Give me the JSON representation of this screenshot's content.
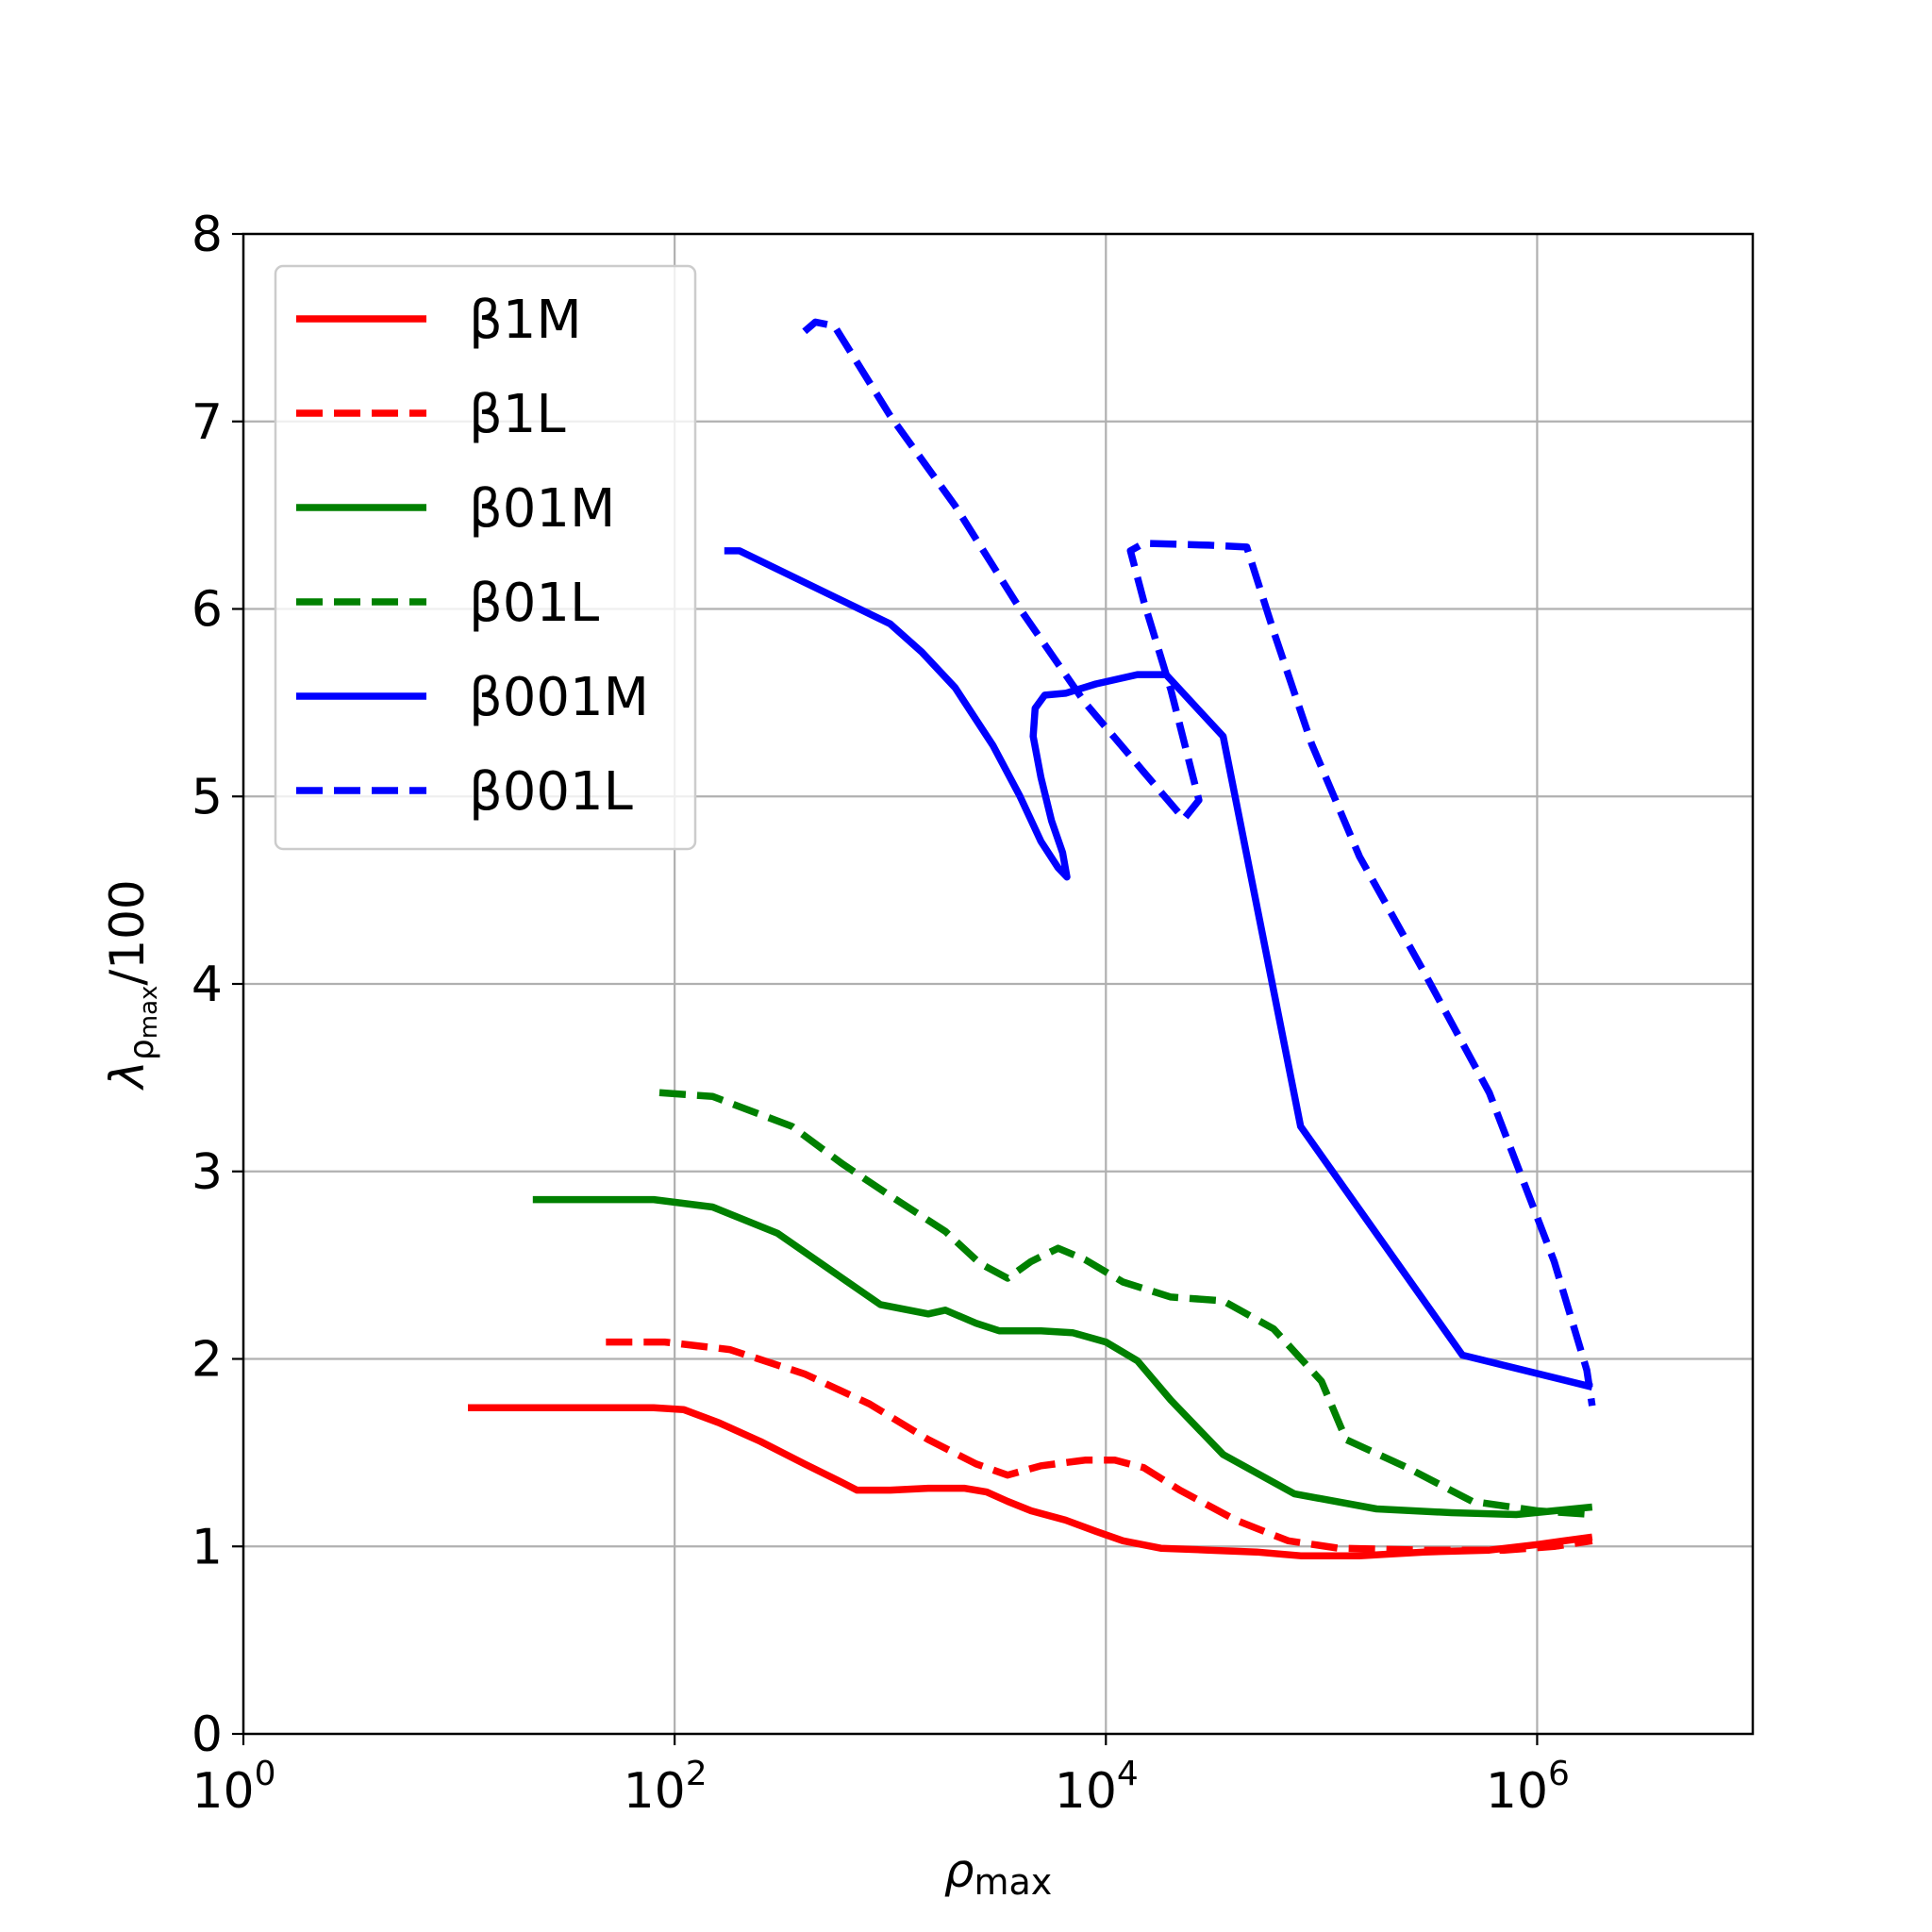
{
  "chart_data": {
    "type": "line",
    "title": "",
    "xlabel": {
      "base": "ρ",
      "sub": "max"
    },
    "ylabel": {
      "base": "λ",
      "sub": "ρ",
      "subsub": "max",
      "suffix": "/100"
    },
    "xscale": "log",
    "xlim": [
      1,
      10000000
    ],
    "ylim": [
      0,
      8
    ],
    "grid": true,
    "legend_placement": "top-left",
    "x_ticks": [
      {
        "value": 1,
        "base": "10",
        "exp": "0"
      },
      {
        "value": 100,
        "base": "10",
        "exp": "2"
      },
      {
        "value": 10000,
        "base": "10",
        "exp": "4"
      },
      {
        "value": 1000000,
        "base": "10",
        "exp": "6"
      }
    ],
    "y_ticks": [
      {
        "value": 0,
        "label": "0"
      },
      {
        "value": 1,
        "label": "1"
      },
      {
        "value": 2,
        "label": "2"
      },
      {
        "value": 3,
        "label": "3"
      },
      {
        "value": 4,
        "label": "4"
      },
      {
        "value": 5,
        "label": "5"
      },
      {
        "value": 6,
        "label": "6"
      },
      {
        "value": 7,
        "label": "7"
      },
      {
        "value": 8,
        "label": "8"
      }
    ],
    "series": [
      {
        "name": "β1M",
        "color": "#ff0000",
        "dash": false,
        "points": [
          [
            11,
            1.74
          ],
          [
            30,
            1.74
          ],
          [
            80,
            1.74
          ],
          [
            110,
            1.73
          ],
          [
            160,
            1.66
          ],
          [
            250,
            1.56
          ],
          [
            400,
            1.44
          ],
          [
            600,
            1.34
          ],
          [
            700,
            1.3
          ],
          [
            1000,
            1.3
          ],
          [
            1500,
            1.31
          ],
          [
            2200,
            1.31
          ],
          [
            2800,
            1.29
          ],
          [
            3500,
            1.24
          ],
          [
            4500,
            1.19
          ],
          [
            6500,
            1.14
          ],
          [
            9000,
            1.08
          ],
          [
            12000,
            1.03
          ],
          [
            18000,
            0.99
          ],
          [
            30000,
            0.98
          ],
          [
            50000,
            0.97
          ],
          [
            80000,
            0.95
          ],
          [
            150000,
            0.95
          ],
          [
            300000,
            0.97
          ],
          [
            600000,
            0.98
          ],
          [
            1000000,
            1.01
          ],
          [
            1800000,
            1.05
          ]
        ]
      },
      {
        "name": "β1L",
        "color": "#ff0000",
        "dash": true,
        "points": [
          [
            48,
            2.09
          ],
          [
            90,
            2.09
          ],
          [
            180,
            2.05
          ],
          [
            400,
            1.92
          ],
          [
            800,
            1.76
          ],
          [
            1500,
            1.57
          ],
          [
            2500,
            1.44
          ],
          [
            3500,
            1.38
          ],
          [
            5000,
            1.43
          ],
          [
            8000,
            1.46
          ],
          [
            11000,
            1.46
          ],
          [
            15000,
            1.42
          ],
          [
            22000,
            1.3
          ],
          [
            40000,
            1.14
          ],
          [
            70000,
            1.03
          ],
          [
            120000,
            0.99
          ],
          [
            300000,
            0.98
          ],
          [
            700000,
            0.98
          ],
          [
            1200000,
            1.0
          ],
          [
            1800000,
            1.03
          ]
        ]
      },
      {
        "name": "β01M",
        "color": "#008000",
        "dash": false,
        "points": [
          [
            22,
            2.85
          ],
          [
            50,
            2.85
          ],
          [
            80,
            2.85
          ],
          [
            150,
            2.81
          ],
          [
            300,
            2.67
          ],
          [
            550,
            2.46
          ],
          [
            900,
            2.29
          ],
          [
            1500,
            2.24
          ],
          [
            1800,
            2.26
          ],
          [
            2500,
            2.19
          ],
          [
            3200,
            2.15
          ],
          [
            5000,
            2.15
          ],
          [
            7000,
            2.14
          ],
          [
            10000,
            2.09
          ],
          [
            14000,
            1.99
          ],
          [
            20000,
            1.78
          ],
          [
            35000,
            1.49
          ],
          [
            75000,
            1.28
          ],
          [
            180000,
            1.2
          ],
          [
            400000,
            1.18
          ],
          [
            800000,
            1.17
          ],
          [
            1800000,
            1.21
          ]
        ]
      },
      {
        "name": "β01L",
        "color": "#008000",
        "dash": true,
        "points": [
          [
            85,
            3.42
          ],
          [
            150,
            3.4
          ],
          [
            350,
            3.24
          ],
          [
            600,
            3.04
          ],
          [
            1000,
            2.87
          ],
          [
            1800,
            2.68
          ],
          [
            2600,
            2.51
          ],
          [
            3500,
            2.43
          ],
          [
            4500,
            2.52
          ],
          [
            6000,
            2.59
          ],
          [
            8000,
            2.53
          ],
          [
            12000,
            2.41
          ],
          [
            20000,
            2.33
          ],
          [
            35000,
            2.31
          ],
          [
            60000,
            2.16
          ],
          [
            100000,
            1.88
          ],
          [
            130000,
            1.57
          ],
          [
            250000,
            1.42
          ],
          [
            500000,
            1.24
          ],
          [
            1000000,
            1.19
          ],
          [
            1800000,
            1.17
          ]
        ]
      },
      {
        "name": "β001M",
        "color": "#0000ff",
        "dash": false,
        "points": [
          [
            170,
            6.31
          ],
          [
            200,
            6.31
          ],
          [
            1000,
            5.92
          ],
          [
            1400,
            5.77
          ],
          [
            2000,
            5.58
          ],
          [
            3000,
            5.27
          ],
          [
            4000,
            5.0
          ],
          [
            5000,
            4.76
          ],
          [
            6000,
            4.62
          ],
          [
            6600,
            4.57
          ],
          [
            6300,
            4.7
          ],
          [
            5600,
            4.87
          ],
          [
            5000,
            5.1
          ],
          [
            4600,
            5.32
          ],
          [
            4700,
            5.47
          ],
          [
            5200,
            5.54
          ],
          [
            6500,
            5.55
          ],
          [
            9000,
            5.6
          ],
          [
            14000,
            5.65
          ],
          [
            19000,
            5.65
          ],
          [
            35000,
            5.32
          ],
          [
            80000,
            3.24
          ],
          [
            450000,
            2.02
          ],
          [
            1800000,
            1.85
          ]
        ]
      },
      {
        "name": "β001L",
        "color": "#0000ff",
        "dash": true,
        "points": [
          [
            400,
            7.48
          ],
          [
            450,
            7.53
          ],
          [
            550,
            7.51
          ],
          [
            1000,
            7.03
          ],
          [
            2000,
            6.55
          ],
          [
            4000,
            6.0
          ],
          [
            8000,
            5.5
          ],
          [
            15000,
            5.13
          ],
          [
            23000,
            4.88
          ],
          [
            27000,
            4.98
          ],
          [
            20000,
            5.57
          ],
          [
            15000,
            6.04
          ],
          [
            13000,
            6.31
          ],
          [
            15000,
            6.35
          ],
          [
            30000,
            6.34
          ],
          [
            45000,
            6.33
          ],
          [
            60000,
            5.88
          ],
          [
            90000,
            5.28
          ],
          [
            150000,
            4.68
          ],
          [
            300000,
            4.06
          ],
          [
            600000,
            3.42
          ],
          [
            1200000,
            2.52
          ],
          [
            1700000,
            1.94
          ],
          [
            1800000,
            1.75
          ]
        ]
      }
    ]
  }
}
